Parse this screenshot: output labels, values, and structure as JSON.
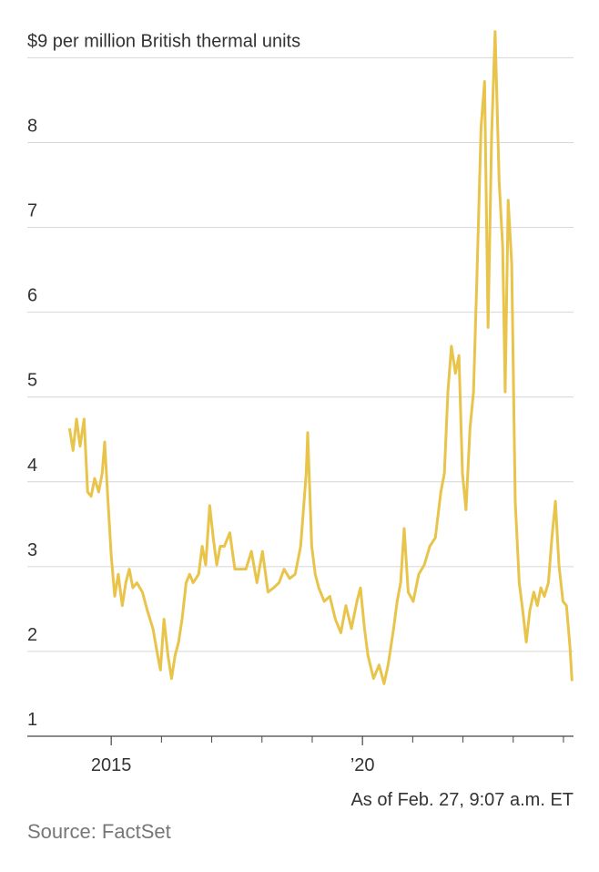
{
  "chart_data": {
    "type": "line",
    "color": "#e8c44a",
    "grid": true,
    "xlim": [
      2013.33,
      2024.2
    ],
    "xticks": [
      2015,
      {
        "value": 2020,
        "label": "’20"
      }
    ],
    "xminorticks": [
      2016,
      2017,
      2018,
      2019,
      2021,
      2022,
      2023,
      2024
    ],
    "ylim": [
      1,
      9.4
    ],
    "yticks": [
      1,
      2,
      3,
      4,
      5,
      6,
      7,
      8,
      {
        "value": 9,
        "label": "$9 per million British thermal units"
      }
    ],
    "annotation": "As of Feb. 27, 9:07 a.m. ET",
    "source": "Source: FactSet",
    "x": [
      2014.17,
      2014.24,
      2014.31,
      2014.38,
      2014.46,
      2014.53,
      2014.6,
      2014.67,
      2014.75,
      2014.82,
      2014.87,
      2014.93,
      2015.0,
      2015.07,
      2015.14,
      2015.22,
      2015.29,
      2015.36,
      2015.43,
      2015.51,
      2015.62,
      2015.72,
      2015.83,
      2015.91,
      2015.98,
      2016.05,
      2016.13,
      2016.2,
      2016.27,
      2016.34,
      2016.41,
      2016.49,
      2016.56,
      2016.63,
      2016.74,
      2016.81,
      2016.88,
      2016.96,
      2017.03,
      2017.1,
      2017.17,
      2017.25,
      2017.36,
      2017.46,
      2017.57,
      2017.68,
      2017.79,
      2017.9,
      2018.01,
      2018.12,
      2018.23,
      2018.34,
      2018.44,
      2018.55,
      2018.66,
      2018.77,
      2018.88,
      2018.91,
      2018.99,
      2019.06,
      2019.13,
      2019.24,
      2019.35,
      2019.46,
      2019.57,
      2019.67,
      2019.78,
      2019.89,
      2019.96,
      2020.04,
      2020.11,
      2020.22,
      2020.33,
      2020.43,
      2020.51,
      2020.62,
      2020.69,
      2020.76,
      2020.83,
      2020.91,
      2021.01,
      2021.12,
      2021.23,
      2021.34,
      2021.45,
      2021.56,
      2021.63,
      2021.7,
      2021.77,
      2021.85,
      2021.92,
      2021.99,
      2022.06,
      2022.14,
      2022.21,
      2022.28,
      2022.36,
      2022.43,
      2022.5,
      2022.57,
      2022.64,
      2022.72,
      2022.79,
      2022.84,
      2022.9,
      2022.97,
      2023.04,
      2023.12,
      2023.19,
      2023.26,
      2023.33,
      2023.41,
      2023.48,
      2023.55,
      2023.62,
      2023.7,
      2023.77,
      2023.84,
      2023.91,
      2023.99,
      2024.06,
      2024.13,
      2024.17
    ],
    "values": [
      4.63,
      4.37,
      4.74,
      4.42,
      4.74,
      3.88,
      3.83,
      4.04,
      3.88,
      4.1,
      4.47,
      3.83,
      3.13,
      2.65,
      2.91,
      2.54,
      2.81,
      2.97,
      2.75,
      2.81,
      2.7,
      2.48,
      2.27,
      2.0,
      1.78,
      2.38,
      1.95,
      1.68,
      1.95,
      2.11,
      2.38,
      2.81,
      2.91,
      2.81,
      2.91,
      3.24,
      3.02,
      3.72,
      3.34,
      3.02,
      3.24,
      3.24,
      3.4,
      2.97,
      2.97,
      2.97,
      3.18,
      2.81,
      3.18,
      2.7,
      2.75,
      2.81,
      2.97,
      2.86,
      2.91,
      3.24,
      4.1,
      4.58,
      3.24,
      2.91,
      2.75,
      2.59,
      2.65,
      2.38,
      2.22,
      2.54,
      2.27,
      2.59,
      2.75,
      2.27,
      1.95,
      1.68,
      1.84,
      1.62,
      1.84,
      2.27,
      2.59,
      2.81,
      3.45,
      2.7,
      2.59,
      2.91,
      3.02,
      3.24,
      3.34,
      3.88,
      4.1,
      5.06,
      5.6,
      5.28,
      5.49,
      4.1,
      3.67,
      4.63,
      5.06,
      6.46,
      8.18,
      8.72,
      5.82,
      8.08,
      9.31,
      7.54,
      6.78,
      5.06,
      7.32,
      6.57,
      3.77,
      2.81,
      2.48,
      2.11,
      2.48,
      2.7,
      2.54,
      2.75,
      2.65,
      2.81,
      3.34,
      3.77,
      3.02,
      2.59,
      2.54,
      2.05,
      1.65
    ]
  }
}
